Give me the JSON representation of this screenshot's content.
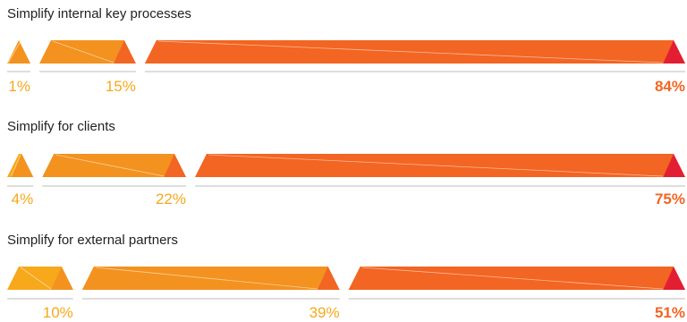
{
  "chart_data": {
    "type": "bar",
    "groups": [
      {
        "title": "Simplify internal key processes",
        "segments": [
          {
            "value": 1,
            "label": "1%",
            "color": "#f7a81b"
          },
          {
            "value": 15,
            "label": "15%",
            "color": "#f3921f"
          },
          {
            "value": 84,
            "label": "84%",
            "color": "#f26522"
          }
        ]
      },
      {
        "title": "Simplify for clients",
        "segments": [
          {
            "value": 4,
            "label": "4%",
            "color": "#f7a81b"
          },
          {
            "value": 22,
            "label": "22%",
            "color": "#f3921f"
          },
          {
            "value": 75,
            "label": "75%",
            "color": "#f26522"
          }
        ]
      },
      {
        "title": "Simplify for external partners",
        "segments": [
          {
            "value": 10,
            "label": "10%",
            "color": "#f7a81b"
          },
          {
            "value": 39,
            "label": "39%",
            "color": "#f3921f"
          },
          {
            "value": 51,
            "label": "51%",
            "color": "#f26522"
          }
        ]
      }
    ],
    "colors": {
      "yellow": "#f7a81b",
      "orange": "#f3921f",
      "red_orange": "#f26522",
      "tip_red": "#e31e32",
      "label_light": "#f7a81b",
      "label_strong": "#f26522"
    }
  }
}
